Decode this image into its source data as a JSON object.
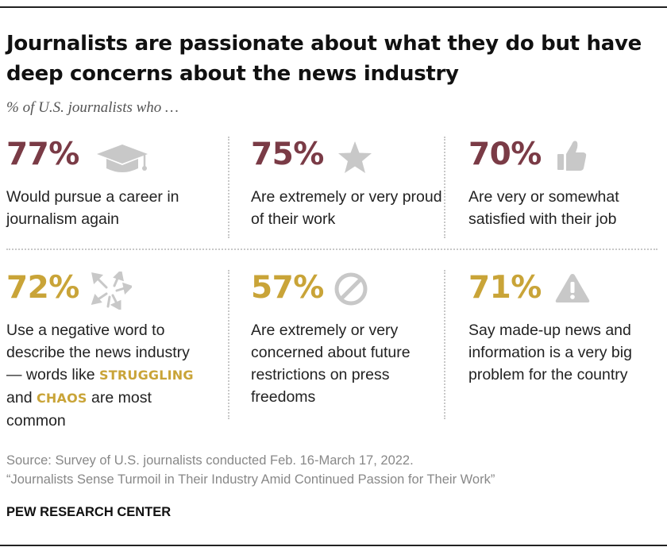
{
  "title": "Journalists are passionate about what they do but have deep concerns about the news industry",
  "subtitle": "% of U.S. journalists who …",
  "stats": [
    {
      "value": "77%",
      "icon": "graduation-cap-icon",
      "color": "#7a3b46",
      "desc": "Would pursue a career in journalism again"
    },
    {
      "value": "75%",
      "icon": "star-icon",
      "color": "#7a3b46",
      "desc": "Are extremely or very proud of their work"
    },
    {
      "value": "70%",
      "icon": "thumbs-up-icon",
      "color": "#7a3b46",
      "desc": "Are very or somewhat satisfied with their job"
    },
    {
      "value": "72%",
      "icon": "scattered-arrows-icon",
      "color": "#c9a438",
      "desc_before": "Use a negative word to describe the news industry — words like",
      "keyword_1": "STRUGGLING",
      "desc_and": "and",
      "keyword_2": "CHAOS",
      "desc_after": "are most common"
    },
    {
      "value": "57%",
      "icon": "prohibited-icon",
      "color": "#c9a438",
      "desc": "Are extremely or very concerned about future restrictions on press freedoms"
    },
    {
      "value": "71%",
      "icon": "warning-icon",
      "color": "#c9a438",
      "desc": "Say made-up news and information is a very big problem for the country"
    }
  ],
  "source_line": "Source: Survey of U.S. journalists conducted Feb. 16-March 17, 2022.",
  "report_line": "“Journalists Sense Turmoil in Their Industry Amid Continued Passion for Their Work”",
  "organization": "PEW RESEARCH CENTER"
}
